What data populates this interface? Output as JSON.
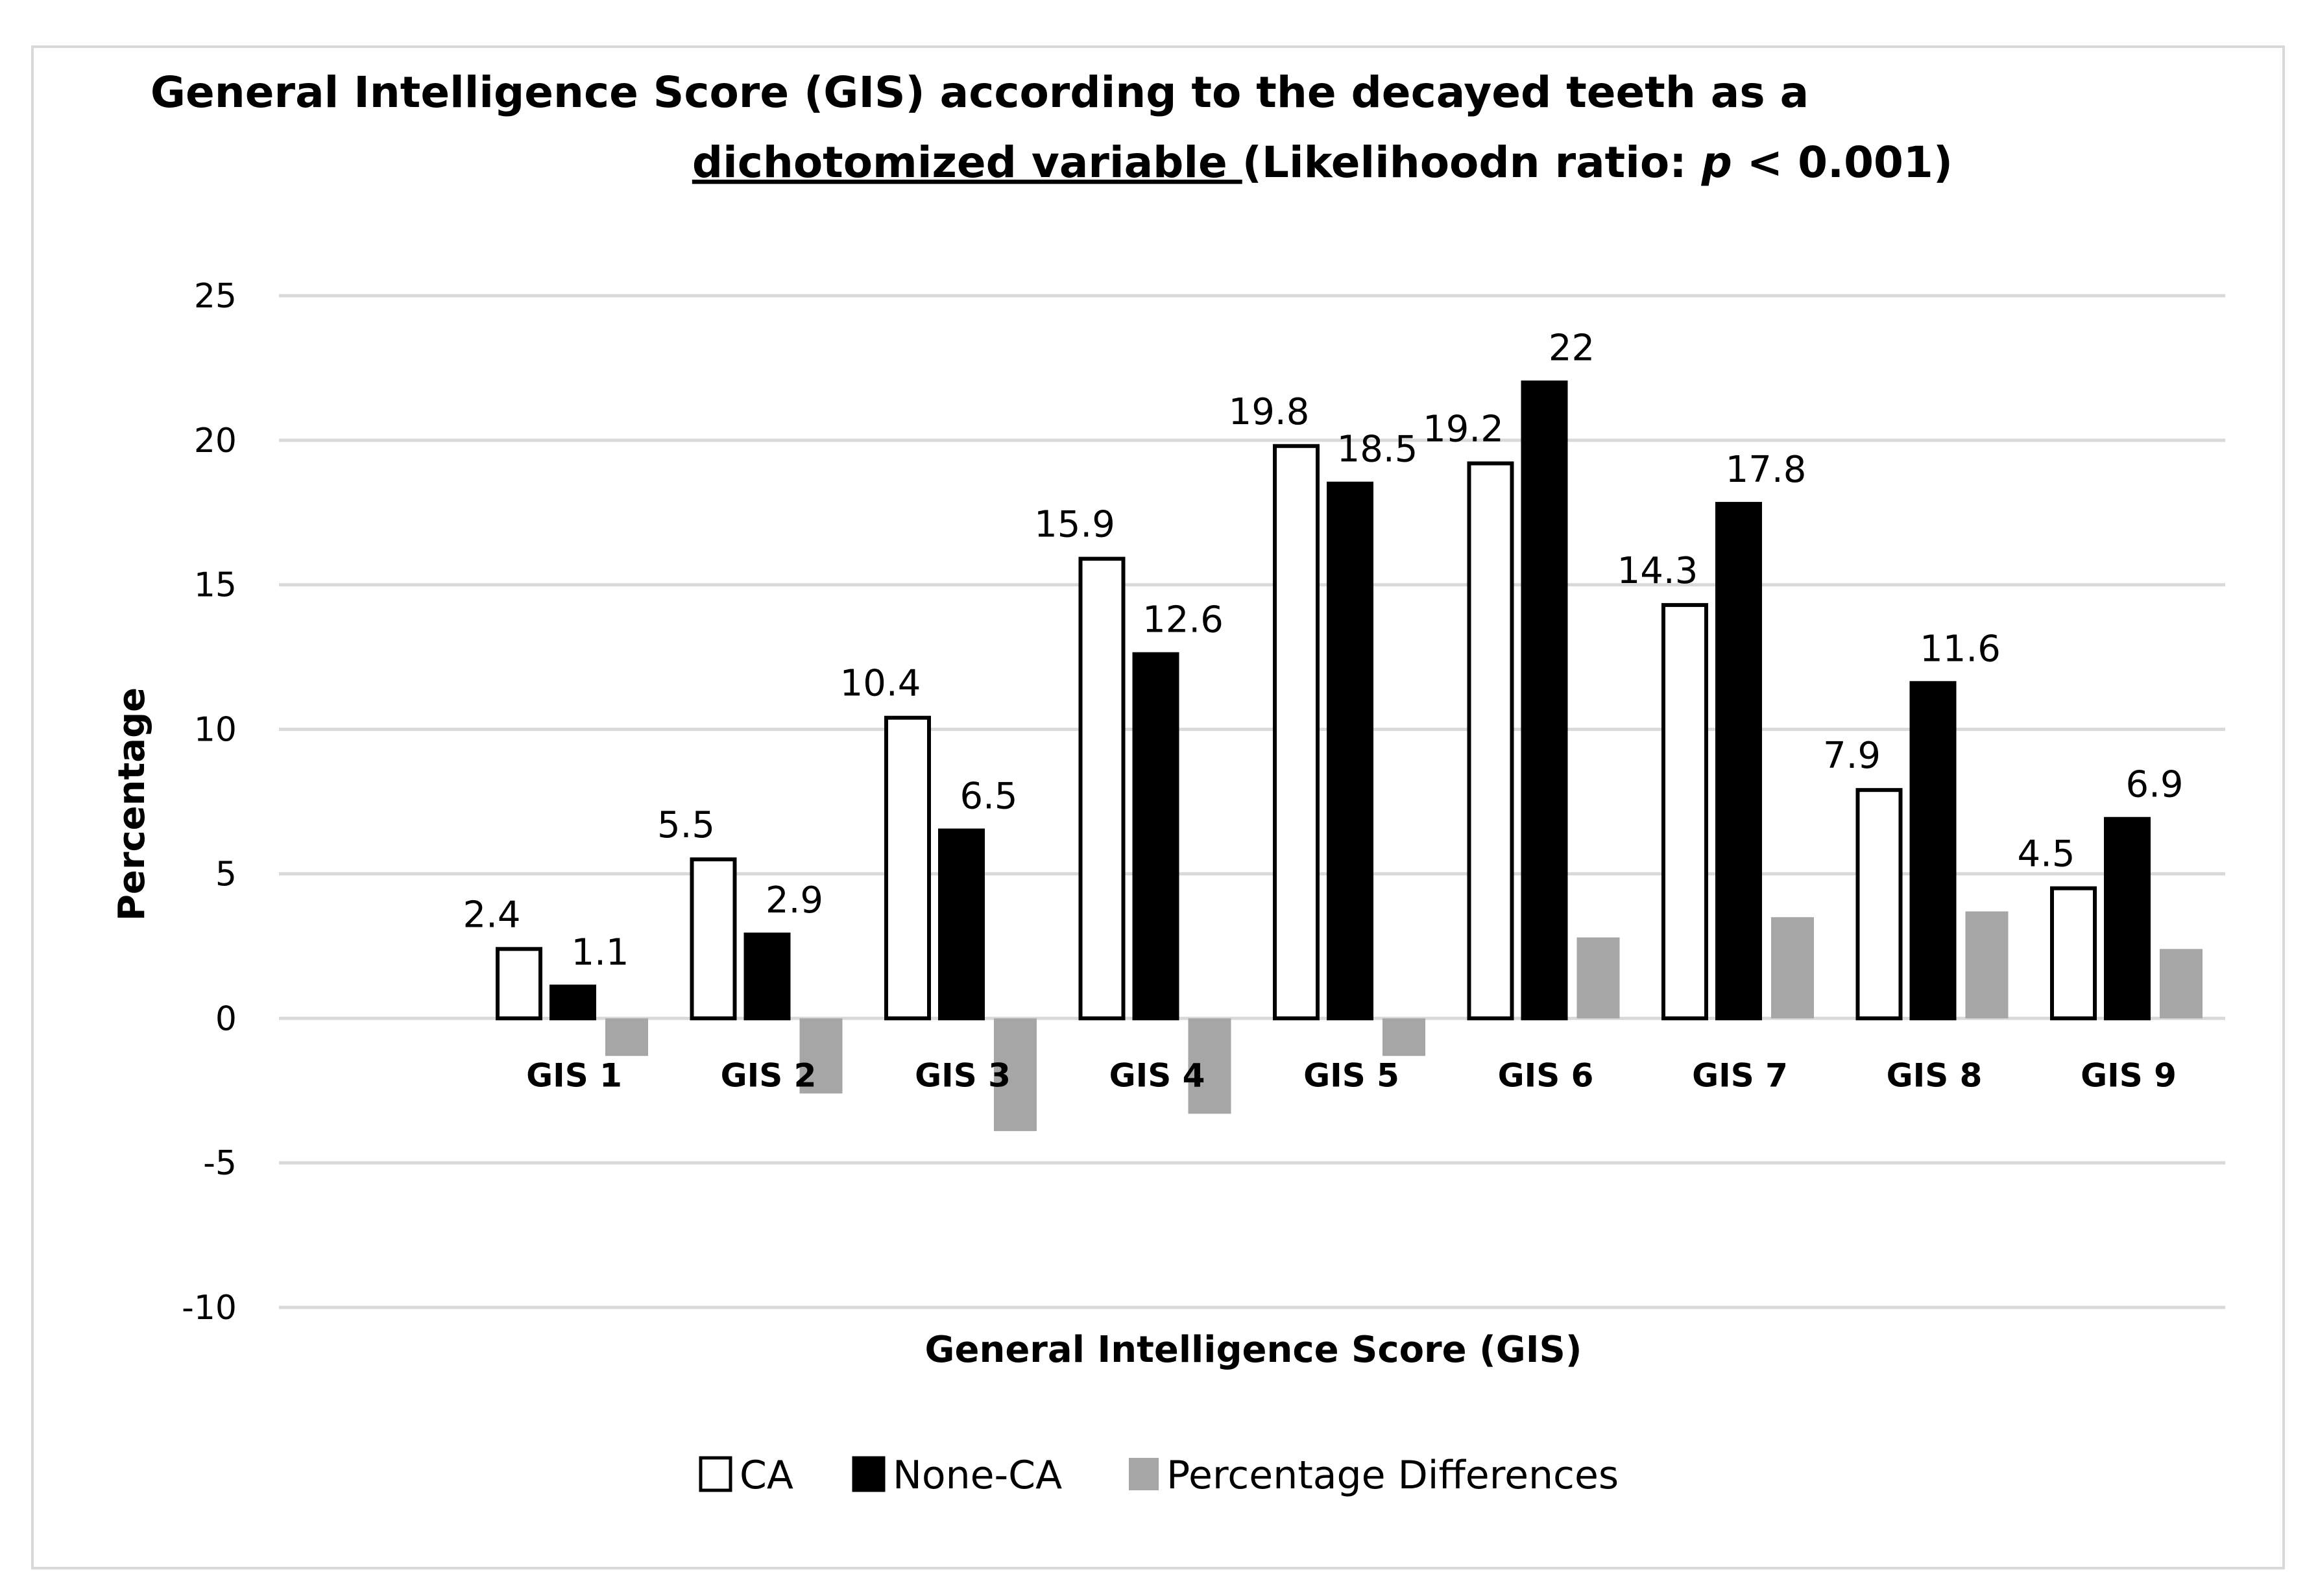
{
  "chart_data": {
    "type": "bar",
    "title_line1": "General Intelligence Score (GIS) according to the decayed teeth as a",
    "title_line2_underlined": "dichotomized variable ",
    "title_line2_rest_prefix": "(Likelihoodn ratio: ",
    "title_line2_italic": "p",
    "title_line2_rest_suffix": " < 0.001)",
    "xlabel": "General Intelligence Score (GIS)",
    "ylabel": "Percentage",
    "ylim": [
      -10,
      25
    ],
    "yticks": [
      -10,
      -5,
      0,
      5,
      10,
      15,
      20,
      25
    ],
    "grid": true,
    "legend_position": "bottom",
    "categories": [
      "GIS 1",
      "GIS 2",
      "GIS 3",
      "GIS 4",
      "GIS 5",
      "GIS 6",
      "GIS 7",
      "GIS 8",
      "GIS 9"
    ],
    "series": [
      {
        "name": "CA",
        "values": [
          2.4,
          5.5,
          10.4,
          15.9,
          19.8,
          19.2,
          14.3,
          7.9,
          4.5
        ],
        "labels": [
          "2.4",
          "5.5",
          "10.4",
          "15.9",
          "19.8",
          "19.2",
          "14.3",
          "7.9",
          "4.5"
        ],
        "fill": "#ffffff",
        "stroke": "#000000"
      },
      {
        "name": "None-CA",
        "values": [
          1.1,
          2.9,
          6.5,
          12.6,
          18.5,
          22,
          17.8,
          11.6,
          6.9
        ],
        "labels": [
          "1.1",
          "2.9",
          "6.5",
          "12.6",
          "18.5",
          "22",
          "17.8",
          "11.6",
          "6.9"
        ],
        "fill": "#000000",
        "stroke": "#000000"
      },
      {
        "name": "Percentage Differences",
        "values": [
          -1.3,
          -2.6,
          -3.9,
          -3.3,
          -1.3,
          2.8,
          3.5,
          3.7,
          2.4
        ],
        "fill": "#a6a6a6",
        "stroke": "none"
      }
    ]
  },
  "colors": {
    "grid": "#d9d9d9",
    "frame": "#d9d9d9"
  }
}
